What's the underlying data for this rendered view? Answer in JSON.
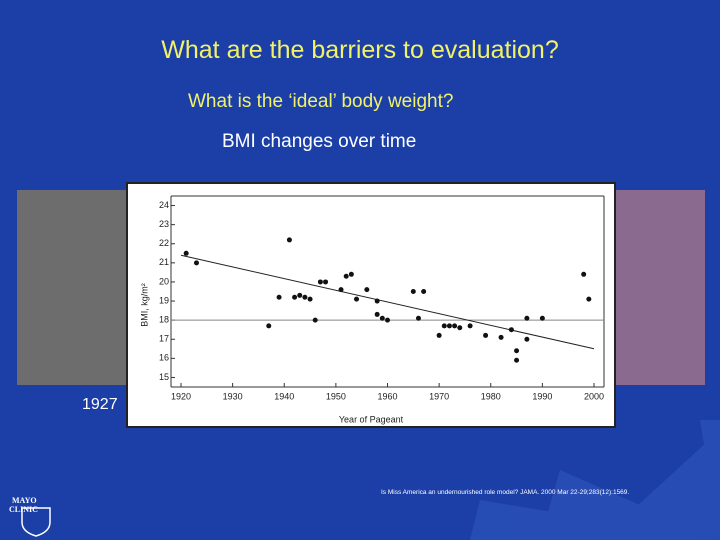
{
  "title": "What are the barriers to evaluation?",
  "subtitle": "What is the ‘ideal’ body weight?",
  "heading": "BMI changes over time",
  "photo_caption": "1927",
  "citation": "Is Miss America an undernourished role model? JAMA. 2000 Mar 22-29;283(12):1569.",
  "logo": [
    "MAYO",
    "CLINIC"
  ],
  "chart_data": {
    "type": "scatter",
    "x_label": "Year of Pageant",
    "y_label": "BMI, kg/m²",
    "x": [
      1921,
      1923,
      1937,
      1939,
      1941,
      1942,
      1943,
      1944,
      1945,
      1946,
      1947,
      1948,
      1951,
      1952,
      1953,
      1954,
      1956,
      1958,
      1958,
      1959,
      1960,
      1965,
      1966,
      1967,
      1970,
      1971,
      1972,
      1973,
      1974,
      1976,
      1979,
      1982,
      1984,
      1985,
      1985,
      1987,
      1987,
      1990,
      1998,
      1999
    ],
    "values": [
      21.5,
      21.0,
      17.7,
      19.2,
      22.2,
      19.2,
      19.3,
      19.2,
      19.1,
      18.0,
      20.0,
      20.0,
      19.6,
      20.3,
      20.4,
      19.1,
      19.6,
      19.0,
      18.3,
      18.1,
      18.0,
      19.5,
      18.1,
      19.5,
      17.2,
      17.7,
      17.7,
      17.7,
      17.6,
      17.7,
      17.2,
      17.1,
      17.5,
      16.4,
      15.9,
      18.1,
      17.0,
      18.1,
      20.4,
      19.1
    ],
    "color": "#111111",
    "trend": [
      21.4,
      16.5
    ],
    "reference_line": 18,
    "xlim": [
      1920,
      2000
    ],
    "ylim": [
      14.5,
      24.5
    ],
    "xticks": [
      1920,
      1930,
      1940,
      1950,
      1960,
      1970,
      1980,
      1990,
      2000
    ],
    "yticks": [
      15,
      16,
      17,
      18,
      19,
      20,
      21,
      22,
      23,
      24
    ]
  }
}
